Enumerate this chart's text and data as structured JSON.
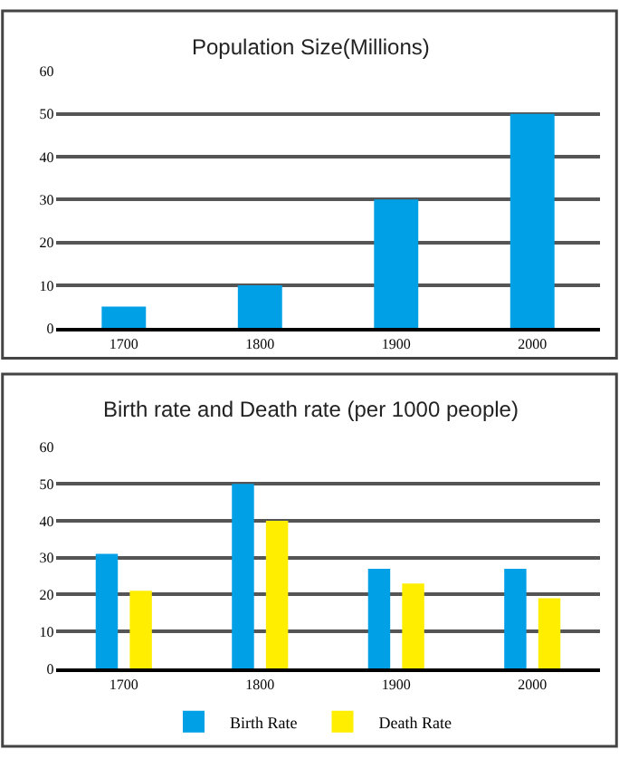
{
  "chart_data": [
    {
      "type": "bar",
      "title": "Population Size(Millions)",
      "categories": [
        "1700",
        "1800",
        "1900",
        "2000"
      ],
      "values": [
        5,
        10,
        30,
        50
      ],
      "color": "#00a0e6",
      "ylim": [
        0,
        60
      ],
      "yticks": [
        0,
        10,
        20,
        30,
        40,
        50,
        60
      ],
      "grid": "y",
      "legend": false
    },
    {
      "type": "bar",
      "title": "Birth rate and Death rate (per 1000 people)",
      "categories": [
        "1700",
        "1800",
        "1900",
        "2000"
      ],
      "series": [
        {
          "name": "Birth Rate",
          "color": "#00a0e6",
          "values": [
            31,
            50,
            27,
            27
          ]
        },
        {
          "name": "Death Rate",
          "color": "#ffee00",
          "values": [
            21,
            40,
            23,
            19
          ]
        }
      ],
      "ylim": [
        0,
        60
      ],
      "yticks": [
        0,
        10,
        20,
        30,
        40,
        50,
        60
      ],
      "grid": "y",
      "legend": "bottom"
    }
  ]
}
